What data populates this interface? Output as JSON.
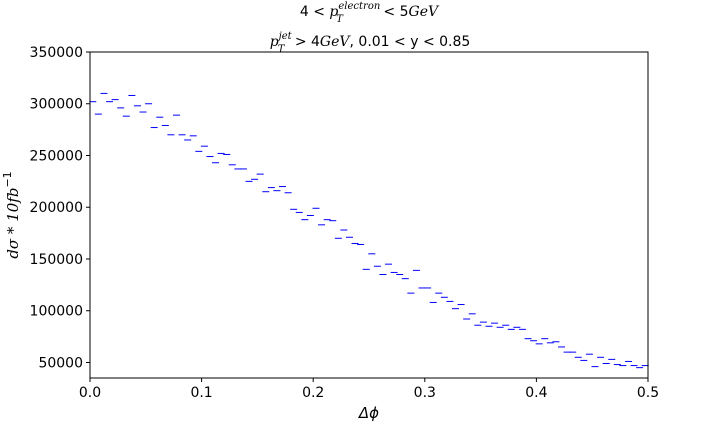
{
  "chart_data": {
    "type": "scatter",
    "marker": "hline",
    "marker_color": "#0000ff",
    "title_line1": {
      "pre": "4 < ",
      "var": "p",
      "sup": "electron",
      "sub": "T",
      "post": " < 5",
      "unit": "GeV"
    },
    "title_line2": {
      "var": "p",
      "sup": "jet",
      "sub": "T",
      "post": " > 4",
      "unit": "GeV",
      "rest": ", 0.01 < y < 0.85"
    },
    "xlabel": "Δϕ",
    "ylabel": {
      "main": "dσ * 10",
      "unit": "fb",
      "sup": "−1"
    },
    "xlim": [
      0,
      0.5
    ],
    "ylim": [
      35000,
      350000
    ],
    "xticks": [
      "0.0",
      "0.1",
      "0.2",
      "0.3",
      "0.4",
      "0.5"
    ],
    "yticks": [
      "50000",
      "100000",
      "150000",
      "200000",
      "250000",
      "300000",
      "350000"
    ],
    "grid": false,
    "x": [
      0.0025,
      0.0075,
      0.0125,
      0.0175,
      0.0225,
      0.0275,
      0.0325,
      0.0375,
      0.0425,
      0.0475,
      0.0525,
      0.0575,
      0.0625,
      0.0675,
      0.0725,
      0.0775,
      0.0825,
      0.0875,
      0.0925,
      0.0975,
      0.1025,
      0.1075,
      0.1125,
      0.1175,
      0.1225,
      0.1275,
      0.1325,
      0.1375,
      0.1425,
      0.1475,
      0.1525,
      0.1575,
      0.1625,
      0.1675,
      0.1725,
      0.1775,
      0.1825,
      0.1875,
      0.1925,
      0.1975,
      0.2025,
      0.2075,
      0.2125,
      0.2175,
      0.2225,
      0.2275,
      0.2325,
      0.2375,
      0.2425,
      0.2475,
      0.2525,
      0.2575,
      0.2625,
      0.2675,
      0.2725,
      0.2775,
      0.2825,
      0.2875,
      0.2925,
      0.2975,
      0.3025,
      0.3075,
      0.3125,
      0.3175,
      0.3225,
      0.3275,
      0.3325,
      0.3375,
      0.3425,
      0.3475,
      0.3525,
      0.3575,
      0.3625,
      0.3675,
      0.3725,
      0.3775,
      0.3825,
      0.3875,
      0.3925,
      0.3975,
      0.4025,
      0.4075,
      0.4125,
      0.4175,
      0.4225,
      0.4275,
      0.4325,
      0.4375,
      0.4425,
      0.4475,
      0.4525,
      0.4575,
      0.4625,
      0.4675,
      0.4725,
      0.4775,
      0.4825,
      0.4875,
      0.4925,
      0.4975
    ],
    "y": [
      302000,
      290000,
      310000,
      302000,
      304000,
      296000,
      288000,
      308000,
      298000,
      292000,
      300000,
      277000,
      287000,
      279000,
      270000,
      289000,
      270000,
      265000,
      269000,
      254000,
      259000,
      249000,
      243000,
      252000,
      251000,
      241000,
      237000,
      237000,
      225000,
      227000,
      232000,
      215000,
      219000,
      216000,
      220000,
      214000,
      198000,
      195000,
      188000,
      192000,
      199000,
      183000,
      188000,
      187000,
      170000,
      178000,
      171000,
      165000,
      164000,
      140000,
      155000,
      143000,
      135000,
      145000,
      137000,
      135000,
      131000,
      117000,
      139000,
      122000,
      122000,
      108000,
      117000,
      113000,
      109000,
      102000,
      106000,
      92000,
      97000,
      86000,
      89000,
      85000,
      88000,
      84000,
      86000,
      82000,
      84000,
      82000,
      73000,
      71000,
      68000,
      73000,
      69000,
      70000,
      65000,
      60000,
      60000,
      55000,
      52000,
      58000,
      46000,
      55000,
      49000,
      53000,
      48000,
      47000,
      51000,
      47000,
      45000,
      47000
    ]
  }
}
